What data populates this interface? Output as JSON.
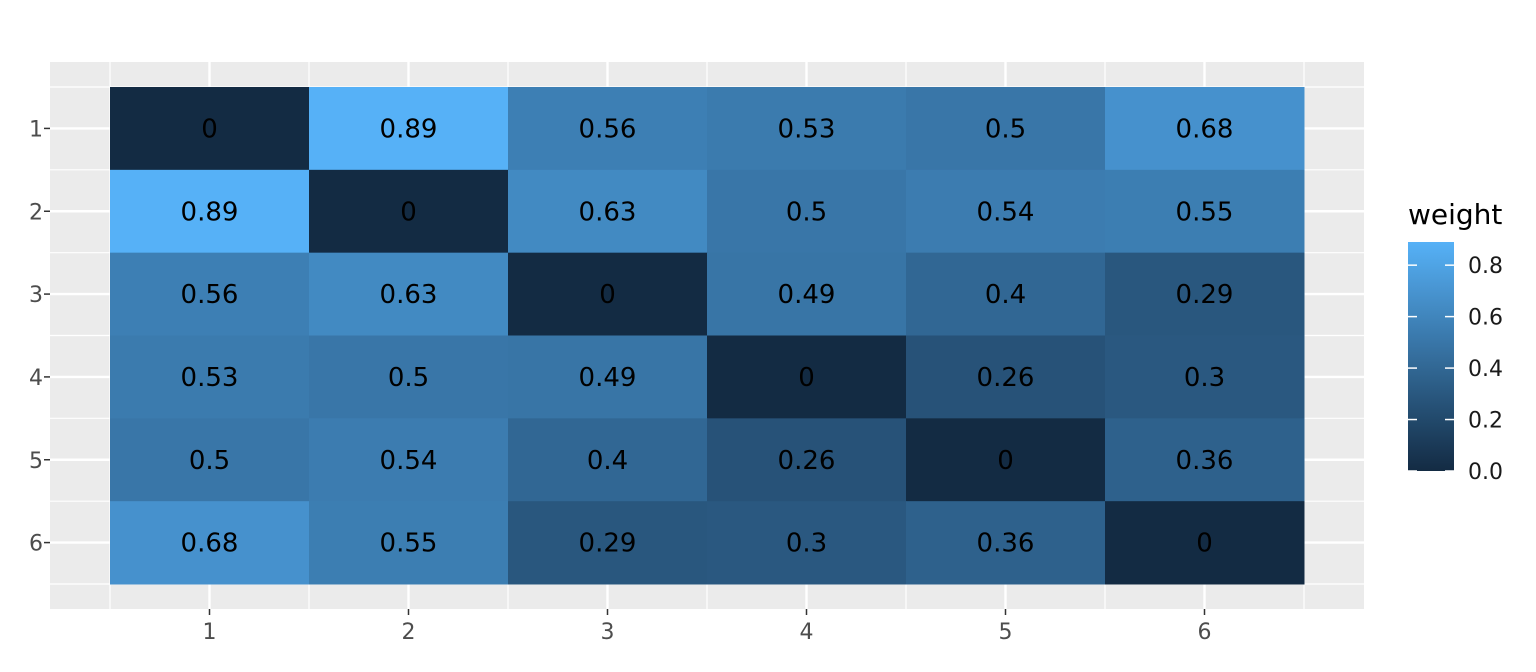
{
  "chart_data": {
    "type": "heatmap",
    "x_categories": [
      "1",
      "2",
      "3",
      "4",
      "5",
      "6"
    ],
    "y_categories": [
      "1",
      "2",
      "3",
      "4",
      "5",
      "6"
    ],
    "values": [
      [
        0,
        0.89,
        0.56,
        0.53,
        0.5,
        0.68
      ],
      [
        0.89,
        0,
        0.63,
        0.5,
        0.54,
        0.55
      ],
      [
        0.56,
        0.63,
        0,
        0.49,
        0.4,
        0.29
      ],
      [
        0.53,
        0.5,
        0.49,
        0,
        0.26,
        0.3
      ],
      [
        0.5,
        0.54,
        0.4,
        0.26,
        0,
        0.36
      ],
      [
        0.68,
        0.55,
        0.29,
        0.3,
        0.36,
        0
      ]
    ],
    "cell_labels": [
      [
        "0",
        "0.89",
        "0.56",
        "0.53",
        "0.5",
        "0.68"
      ],
      [
        "0.89",
        "0",
        "0.63",
        "0.5",
        "0.54",
        "0.55"
      ],
      [
        "0.56",
        "0.63",
        "0",
        "0.49",
        "0.4",
        "0.29"
      ],
      [
        "0.53",
        "0.5",
        "0.49",
        "0",
        "0.26",
        "0.3"
      ],
      [
        "0.5",
        "0.54",
        "0.4",
        "0.26",
        "0",
        "0.36"
      ],
      [
        "0.68",
        "0.55",
        "0.29",
        "0.3",
        "0.36",
        "0"
      ]
    ],
    "title": "",
    "xlabel": "",
    "ylabel": "",
    "legend": {
      "title": "weight",
      "position": "right",
      "ticks": [
        "0.0",
        "0.2",
        "0.4",
        "0.6",
        "0.8"
      ],
      "tick_values": [
        0,
        0.2,
        0.4,
        0.6,
        0.8
      ],
      "range": [
        0,
        0.89
      ],
      "low_color": "#132B43",
      "high_color": "#56B1F7"
    },
    "grid": true,
    "panel_background": "#EBEBEB",
    "gridline_color": "#FFFFFF"
  }
}
